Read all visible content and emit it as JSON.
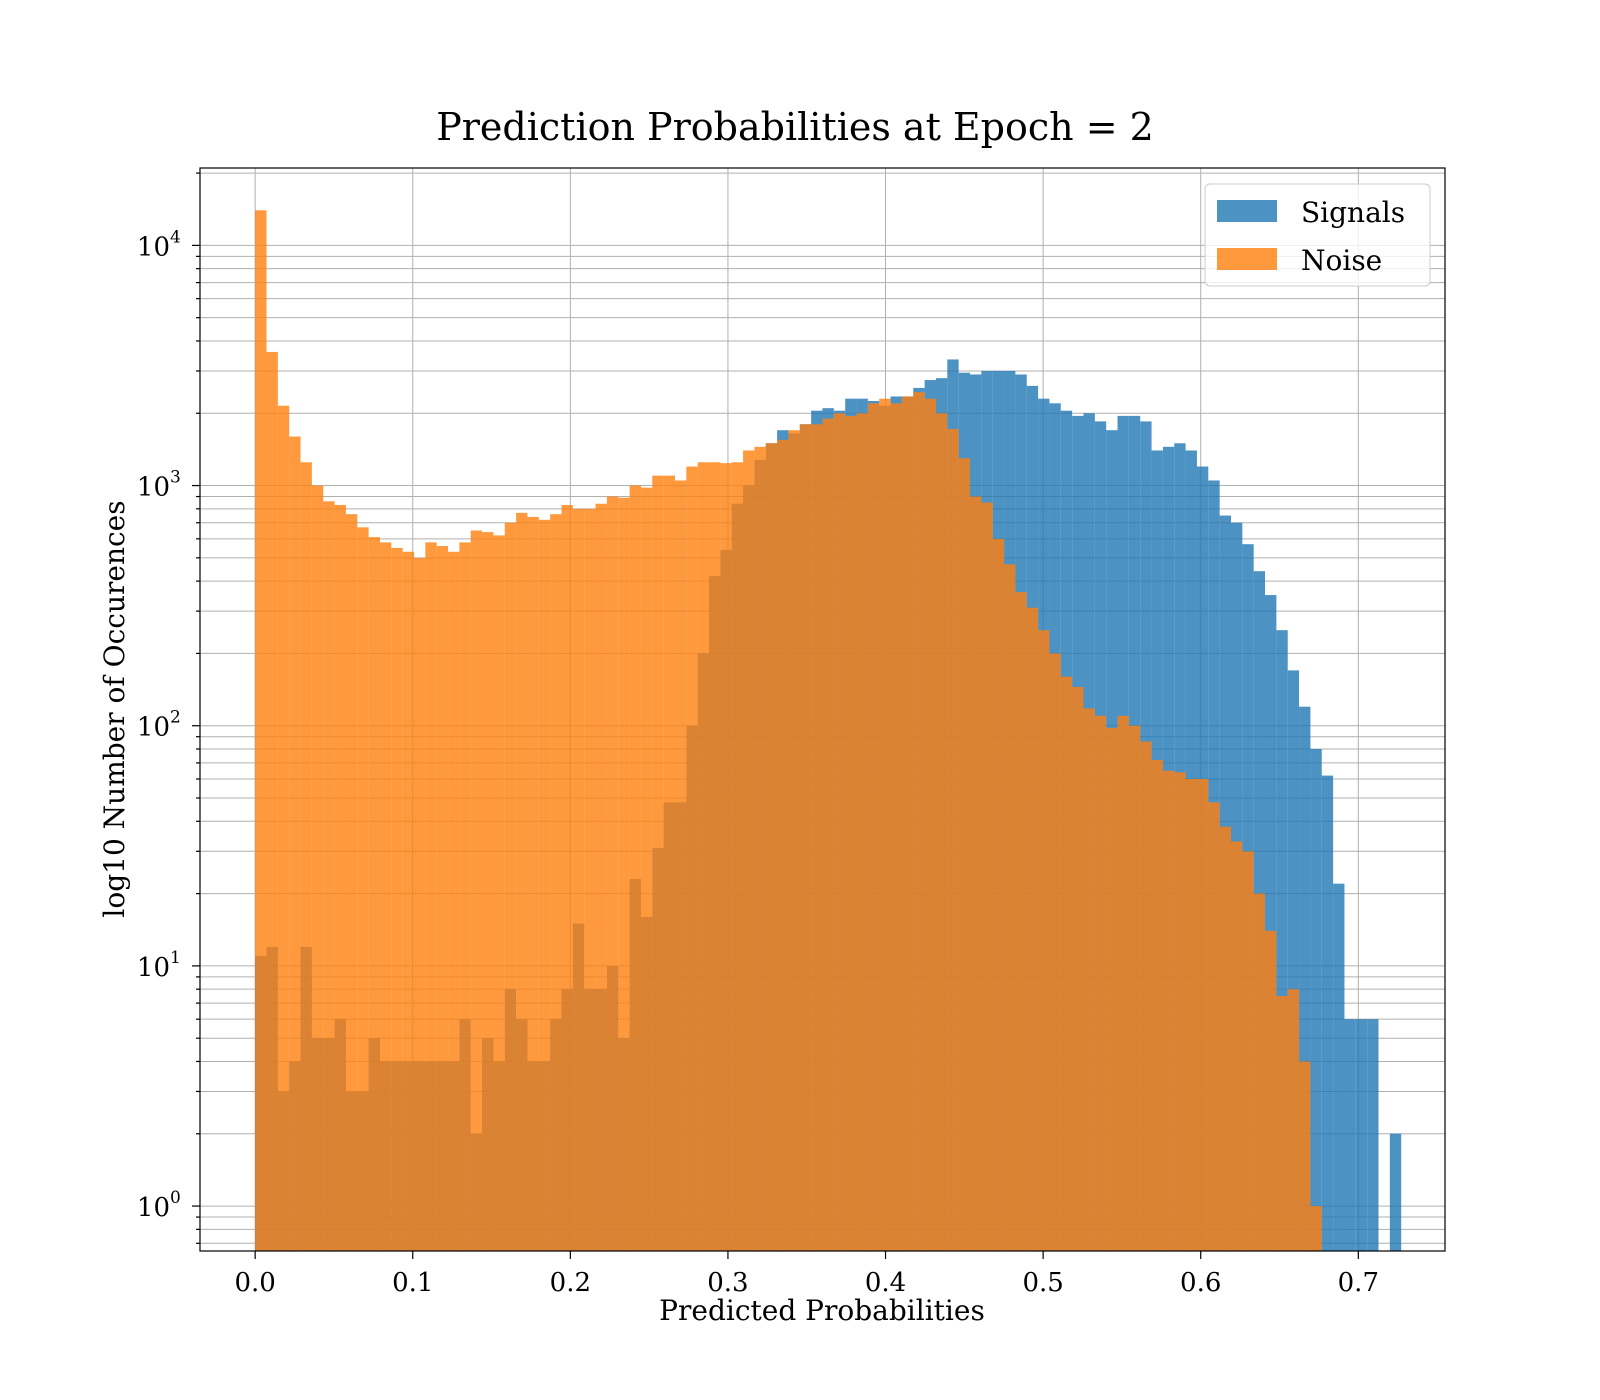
{
  "chart_data": {
    "type": "bar",
    "title": "Prediction Probabilities at Epoch = 2",
    "xlabel": "Predicted Probabilities",
    "ylabel": "log10 Number of Occurences",
    "xlim": [
      -0.035,
      0.755
    ],
    "ylim": [
      0.65,
      21000
    ],
    "yscale": "log",
    "grid": true,
    "legend_position": "top-right",
    "bin_width": 0.0072,
    "x_ticks": [
      {
        "value": 0.0,
        "label": "0.0"
      },
      {
        "value": 0.1,
        "label": "0.1"
      },
      {
        "value": 0.2,
        "label": "0.2"
      },
      {
        "value": 0.3,
        "label": "0.3"
      },
      {
        "value": 0.4,
        "label": "0.4"
      },
      {
        "value": 0.5,
        "label": "0.5"
      },
      {
        "value": 0.6,
        "label": "0.6"
      },
      {
        "value": 0.7,
        "label": "0.7"
      }
    ],
    "y_ticks": [
      {
        "value": 1,
        "base": "10",
        "exp": "0"
      },
      {
        "value": 10,
        "base": "10",
        "exp": "1"
      },
      {
        "value": 100,
        "base": "10",
        "exp": "2"
      },
      {
        "value": 1000,
        "base": "10",
        "exp": "3"
      },
      {
        "value": 10000,
        "base": "10",
        "exp": "4"
      }
    ],
    "series": [
      {
        "name": "Signals",
        "color": "#1f77b4",
        "opacity": 0.8,
        "bin_start": 0.0,
        "values": [
          11,
          12,
          3,
          4,
          12,
          5,
          5,
          6,
          3,
          3,
          5,
          4,
          4,
          4,
          4,
          4,
          4,
          4,
          6,
          2,
          5,
          4,
          8,
          6,
          4,
          4,
          6,
          8,
          15,
          8,
          8,
          10,
          5,
          23,
          16,
          31,
          48,
          48,
          100,
          200,
          420,
          540,
          840,
          1000,
          1280,
          1500,
          1700,
          1650,
          1800,
          2050,
          2100,
          2050,
          2300,
          2300,
          2250,
          2150,
          2350,
          2350,
          2550,
          2750,
          2800,
          3350,
          2950,
          2900,
          3000,
          3000,
          3000,
          2900,
          2600,
          2300,
          2200,
          2050,
          1950,
          2000,
          1850,
          1700,
          1950,
          1950,
          1850,
          1400,
          1450,
          1500,
          1400,
          1200,
          1050,
          750,
          700,
          570,
          440,
          350,
          250,
          170,
          120,
          80,
          62,
          22,
          6,
          6,
          6,
          0,
          2
        ]
      },
      {
        "name": "Noise",
        "color": "#ff7f0e",
        "opacity": 0.8,
        "bin_start": 0.0,
        "values": [
          14000,
          3600,
          2150,
          1600,
          1250,
          1000,
          860,
          830,
          760,
          670,
          610,
          580,
          550,
          530,
          500,
          580,
          560,
          530,
          580,
          650,
          640,
          620,
          700,
          770,
          740,
          720,
          760,
          830,
          800,
          800,
          840,
          900,
          890,
          1000,
          980,
          1100,
          1100,
          1050,
          1200,
          1250,
          1250,
          1240,
          1250,
          1400,
          1450,
          1500,
          1550,
          1700,
          1800,
          1800,
          1900,
          2000,
          1950,
          2000,
          2200,
          2300,
          2200,
          2350,
          2450,
          2300,
          2000,
          1720,
          1300,
          900,
          850,
          600,
          470,
          360,
          310,
          250,
          200,
          160,
          145,
          118,
          110,
          98,
          110,
          100,
          86,
          72,
          65,
          64,
          60,
          60,
          48,
          38,
          33,
          30,
          20,
          14,
          7.5,
          8,
          4,
          1
        ]
      }
    ]
  }
}
